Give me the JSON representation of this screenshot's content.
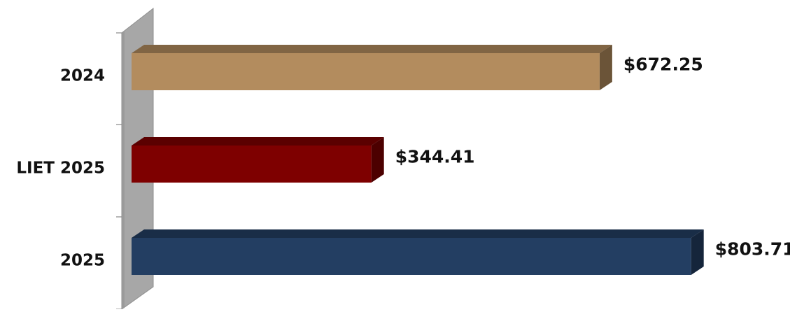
{
  "chart_data": {
    "type": "bar",
    "orientation": "horizontal",
    "style": "3d",
    "title": "",
    "xlabel": "",
    "ylabel": "",
    "categories": [
      "2024",
      "LIET 2025",
      "2025"
    ],
    "values": [
      672.25,
      344.41,
      803.71
    ],
    "value_labels": [
      "$672.25",
      "$344.41",
      "$803.71"
    ],
    "bar_colors": [
      "#b38c5e",
      "#7e0000",
      "#233e62"
    ],
    "xlim": [
      0,
      850
    ],
    "grid": false,
    "legend": "none"
  }
}
